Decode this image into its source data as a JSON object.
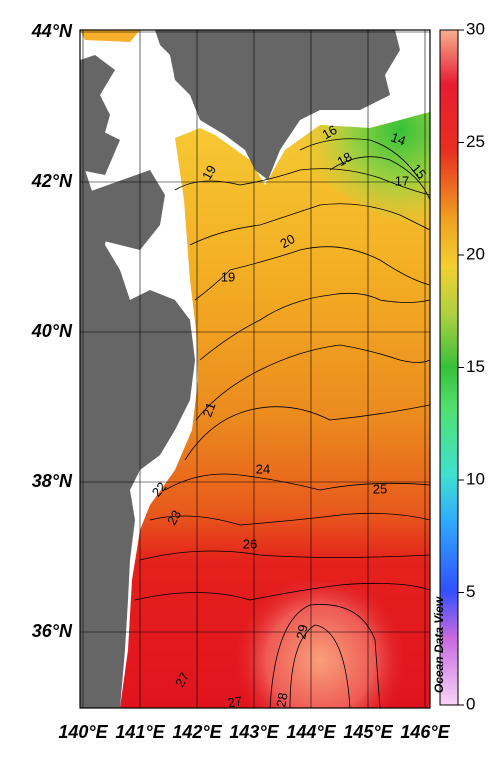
{
  "map": {
    "lon_ticks": [
      {
        "value": 140,
        "label": "140°E"
      },
      {
        "value": 141,
        "label": "141°E"
      },
      {
        "value": 142,
        "label": "142°E"
      },
      {
        "value": 143,
        "label": "143°E"
      },
      {
        "value": 144,
        "label": "144°E"
      },
      {
        "value": 145,
        "label": "145°E"
      },
      {
        "value": 146,
        "label": "146°E"
      }
    ],
    "lat_ticks": [
      {
        "value": 36,
        "label": "36°N"
      },
      {
        "value": 38,
        "label": "38°N"
      },
      {
        "value": 40,
        "label": "40°N"
      },
      {
        "value": 42,
        "label": "42°N"
      },
      {
        "value": 44,
        "label": "44°N"
      }
    ],
    "colorbar": {
      "range": [
        0,
        30
      ],
      "ticks": [
        0,
        5,
        10,
        15,
        20,
        25,
        30
      ]
    },
    "contour_labels": [
      19,
      18,
      16,
      14,
      15,
      17,
      20,
      19,
      21,
      24,
      25,
      22,
      23,
      26,
      29,
      27,
      27,
      28
    ],
    "watermark": "Ocean Data View"
  }
}
